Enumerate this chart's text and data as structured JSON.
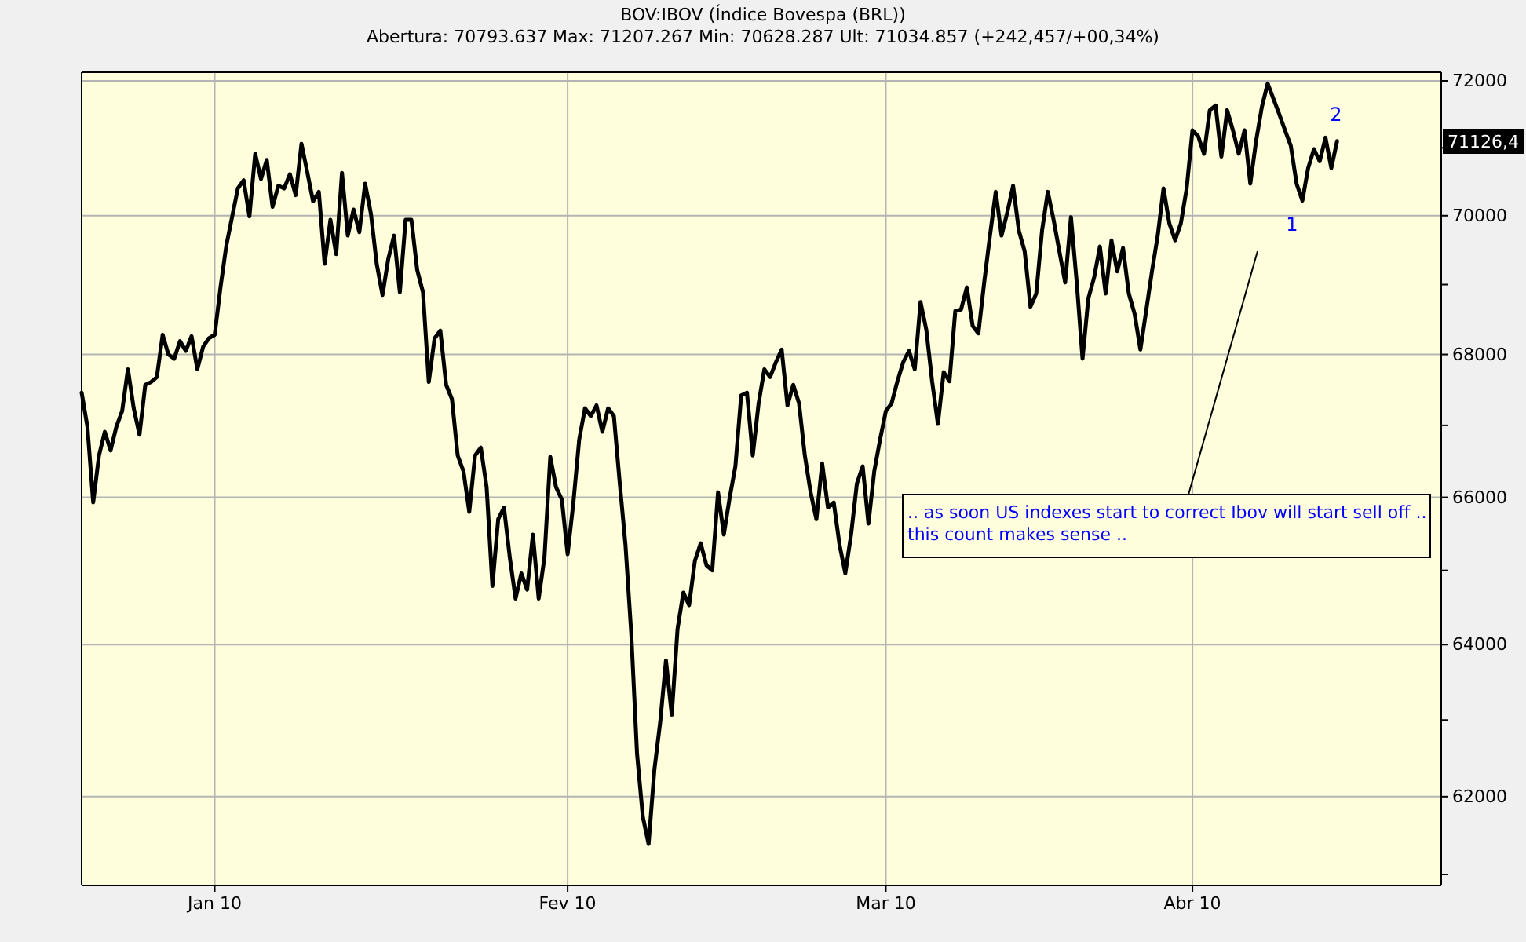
{
  "chart_data": {
    "type": "line",
    "title": "BOV:IBOV (Índice Bovespa (BRL))",
    "subtitle": "Abertura: 70793.637 Max: 71207.267 Min: 70628.287 Ult: 71034.857 (+242,457/+00,34%)",
    "log": true,
    "grid": true,
    "categories": [
      null,
      null,
      null,
      null,
      null,
      null,
      null,
      null,
      null,
      null,
      null,
      null,
      null,
      null,
      null,
      null,
      null,
      null,
      null,
      null,
      null,
      null,
      null,
      "Jan 10",
      null,
      null,
      null,
      null,
      null,
      null,
      null,
      null,
      null,
      null,
      null,
      null,
      null,
      null,
      null,
      null,
      null,
      null,
      null,
      null,
      null,
      null,
      null,
      null,
      null,
      null,
      null,
      null,
      null,
      null,
      null,
      null,
      null,
      null,
      null,
      null,
      null,
      null,
      null,
      null,
      null,
      null,
      null,
      null,
      null,
      null,
      null,
      null,
      null,
      null,
      null,
      null,
      null,
      null,
      null,
      null,
      null,
      null,
      null,
      null,
      "Fev 10",
      null,
      null,
      null,
      null,
      null,
      null,
      null,
      null,
      null,
      null,
      null,
      null,
      null,
      null,
      null,
      null,
      null,
      null,
      null,
      null,
      null,
      null,
      null,
      null,
      null,
      null,
      null,
      null,
      null,
      null,
      null,
      null,
      null,
      null,
      null,
      null,
      null,
      null,
      null,
      null,
      null,
      null,
      null,
      null,
      null,
      null,
      null,
      null,
      null,
      null,
      null,
      null,
      null,
      null,
      "Mar 10",
      null,
      null,
      null,
      null,
      null,
      null,
      null,
      null,
      null,
      null,
      null,
      null,
      null,
      null,
      null,
      null,
      null,
      null,
      null,
      null,
      null,
      null,
      null,
      null,
      null,
      null,
      null,
      null,
      null,
      null,
      null,
      null,
      null,
      null,
      null,
      null,
      null,
      null,
      null,
      null,
      null,
      null,
      null,
      null,
      null,
      null,
      null,
      null,
      null,
      null,
      null,
      null,
      "Abr 10",
      null,
      null,
      null,
      null,
      null,
      null,
      null,
      null,
      null,
      null,
      null,
      null,
      null,
      null,
      null,
      null,
      null,
      null,
      null,
      null,
      null,
      null,
      null,
      null,
      null,
      null,
      null,
      null,
      null,
      null,
      null,
      null,
      null,
      null,
      null,
      null,
      null,
      null,
      null,
      null,
      null,
      null,
      null
    ],
    "ylim": [
      60860,
      72130
    ],
    "yticks": [
      {
        "value": 61000,
        "label": null
      },
      62000,
      {
        "value": 63000,
        "label": null
      },
      64000,
      {
        "value": 65000,
        "label": null
      },
      66000,
      {
        "value": 67000,
        "label": null
      },
      68000,
      {
        "value": 69000,
        "label": null
      },
      70000,
      {
        "value": 71000,
        "label": null
      },
      72000
    ],
    "series": [
      {
        "color": "#000000",
        "values": [
          67460,
          66980,
          65930,
          66580,
          66910,
          66650,
          66980,
          67200,
          67790,
          67240,
          66870,
          67570,
          67610,
          67680,
          68280,
          68000,
          67940,
          68190,
          68050,
          68260,
          67790,
          68110,
          68230,
          68280,
          68960,
          69560,
          69980,
          70400,
          70520,
          69990,
          70910,
          70540,
          70820,
          70130,
          70440,
          70400,
          70610,
          70300,
          71060,
          70640,
          70210,
          70350,
          69300,
          69940,
          69440,
          70630,
          69710,
          70090,
          69760,
          70470,
          70030,
          69300,
          68850,
          69370,
          69710,
          68890,
          69940,
          69940,
          69210,
          68890,
          67610,
          68230,
          68340,
          67570,
          67370,
          66580,
          66360,
          65800,
          66580,
          66690,
          66140,
          64790,
          65700,
          65860,
          65180,
          64620,
          64960,
          64740,
          65490,
          64620,
          65180,
          66560,
          66140,
          65970,
          65220,
          65930,
          66800,
          67240,
          67130,
          67280,
          66910,
          67240,
          67130,
          66210,
          65350,
          64150,
          62560,
          61740,
          61390,
          62350,
          62970,
          63790,
          63070,
          64210,
          64700,
          64530,
          65130,
          65370,
          65070,
          65000,
          66070,
          65490,
          65990,
          66430,
          67420,
          67460,
          66580,
          67300,
          67790,
          67680,
          67890,
          68070,
          67280,
          67570,
          67310,
          66580,
          66070,
          65700,
          66470,
          65860,
          65930,
          65350,
          64960,
          65490,
          66190,
          66430,
          65640,
          66360,
          66800,
          67200,
          67310,
          67620,
          67890,
          68050,
          67790,
          68750,
          68350,
          67620,
          67020,
          67750,
          67620,
          68620,
          68640,
          68960,
          68410,
          68300,
          69030,
          69710,
          70350,
          69710,
          70050,
          70440,
          69780,
          69480,
          68680,
          68870,
          69780,
          70350,
          69940,
          69480,
          69030,
          69980,
          69030,
          67940,
          68800,
          69100,
          69550,
          68870,
          69640,
          69190,
          69530,
          68870,
          68580,
          68070,
          68620,
          69190,
          69710,
          70400,
          69890,
          69640,
          69890,
          70400,
          71260,
          71170,
          70910,
          71560,
          71630,
          70870,
          71560,
          71260,
          70910,
          71260,
          70470,
          71100,
          71610,
          71960,
          71730,
          71500,
          71260,
          71030,
          70470,
          70220,
          70700,
          70980,
          70800,
          71150,
          70700,
          71100,
          null,
          null,
          null,
          null,
          null,
          null,
          null,
          null,
          null,
          null,
          null,
          null,
          null,
          null,
          null,
          null,
          null,
          null
        ]
      }
    ],
    "annotations": [
      "1",
      "2",
      "71126,4",
      ".. as soon US indexes start to correct Ibov will start sell off ..\nthis count makes sense .."
    ]
  }
}
